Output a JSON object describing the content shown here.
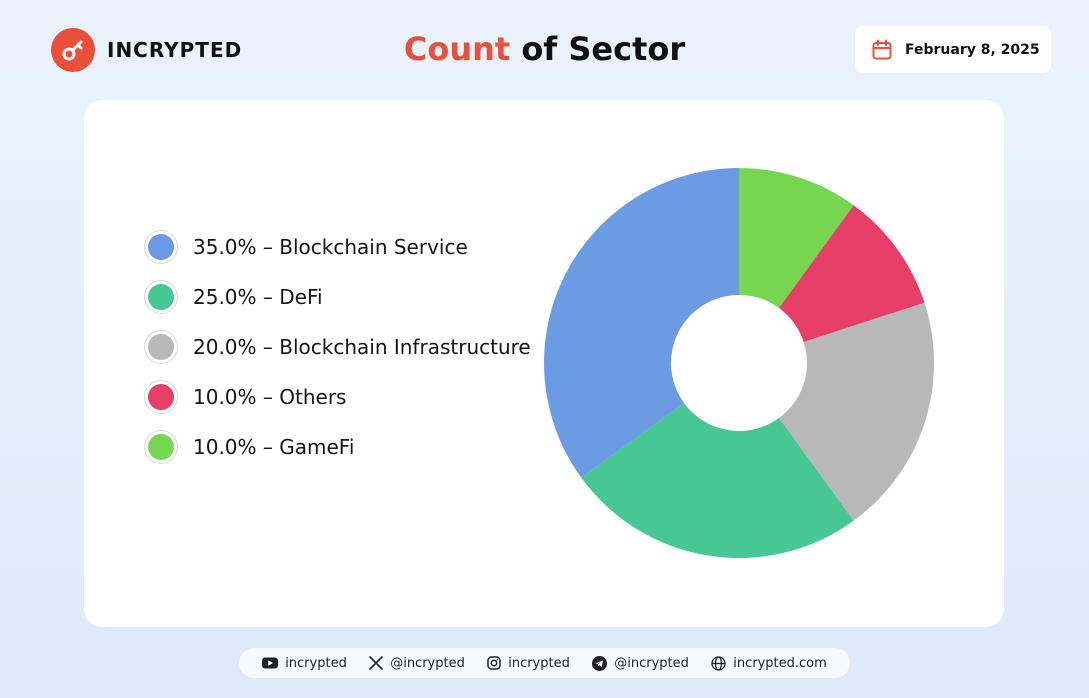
{
  "brand": {
    "name": "INCRYPTED"
  },
  "header": {
    "title_accent": "Count",
    "title_rest": " of Sector",
    "date": "February 8, 2025"
  },
  "colors": {
    "accent": "#e8503a",
    "blockchain_service": "#6b9be3",
    "defi": "#46c794",
    "blockchain_infrastructure": "#b8b8b8",
    "others": "#e63e67",
    "gamefi": "#77d650"
  },
  "legend": [
    {
      "label": "35.0% – Blockchain Service",
      "color": "#6b9be3"
    },
    {
      "label": "25.0% – DeFi",
      "color": "#46c794"
    },
    {
      "label": "20.0% – Blockchain Infrastructure",
      "color": "#b8b8b8"
    },
    {
      "label": "10.0% – Others",
      "color": "#e63e67"
    },
    {
      "label": "10.0% – GameFi",
      "color": "#77d650"
    }
  ],
  "chart_data": {
    "type": "pie",
    "title": "Count of Sector",
    "donut": true,
    "start": "top",
    "direction": "clockwise",
    "slices": [
      {
        "name": "GameFi",
        "value": 10.0,
        "color": "#77d650"
      },
      {
        "name": "Others",
        "value": 10.0,
        "color": "#e63e67"
      },
      {
        "name": "Blockchain Infrastructure",
        "value": 20.0,
        "color": "#b8b8b8"
      },
      {
        "name": "DeFi",
        "value": 25.0,
        "color": "#46c794"
      },
      {
        "name": "Blockchain Service",
        "value": 35.0,
        "color": "#6b9be3"
      }
    ],
    "legend_position": "left"
  },
  "footer": {
    "youtube": "incrypted",
    "x": "@incrypted",
    "instagram": "incrypted",
    "telegram": "@incrypted",
    "website": "incrypted.com"
  },
  "icons": {
    "logo": "key-icon",
    "date": "calendar-icon",
    "youtube": "youtube-icon",
    "x": "x-icon",
    "instagram": "instagram-icon",
    "telegram": "telegram-icon",
    "website": "globe-icon"
  }
}
